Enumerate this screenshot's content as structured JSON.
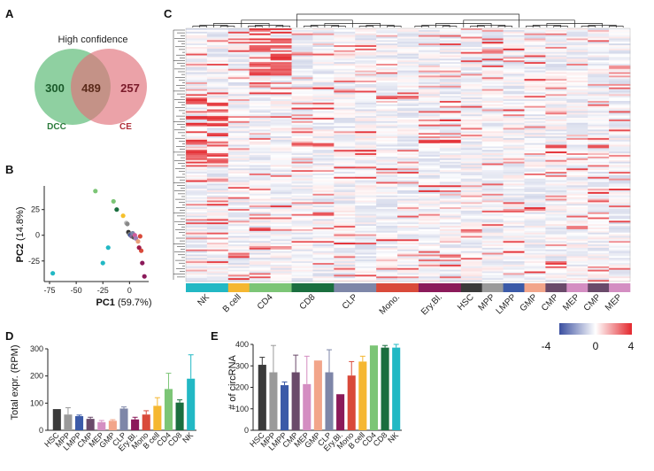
{
  "panels": {
    "A": "A",
    "B": "B",
    "C": "C",
    "D": "D",
    "E": "E"
  },
  "venn": {
    "title": "High confidence",
    "left": {
      "label": "DCC",
      "count": "300",
      "color": "#73c48a"
    },
    "center": {
      "count": "489"
    },
    "right": {
      "label": "CE",
      "count": "257",
      "color": "#e0707a"
    }
  },
  "chart_data": [
    {
      "type": "scatter",
      "panel": "B",
      "xlabel": "PC1",
      "xlabel_pct": "(59.7%)",
      "ylabel": "PC2",
      "ylabel_pct": "(14.8%)",
      "xlim": [
        -80,
        18
      ],
      "ylim": [
        -45,
        48
      ],
      "xticks": [
        -75,
        -50,
        -25,
        0
      ],
      "yticks": [
        -25,
        0,
        25
      ],
      "points": [
        {
          "x": -72,
          "y": -37,
          "color": "#22b8c4"
        },
        {
          "x": -32,
          "y": 43,
          "color": "#7cc576"
        },
        {
          "x": -25,
          "y": -27,
          "color": "#22b8c4"
        },
        {
          "x": -20,
          "y": -12,
          "color": "#22b8c4"
        },
        {
          "x": -15,
          "y": 33,
          "color": "#7cc576"
        },
        {
          "x": -12,
          "y": 25,
          "color": "#1a6e3e"
        },
        {
          "x": -6,
          "y": 19,
          "color": "#f5c02b"
        },
        {
          "x": -3,
          "y": 12,
          "color": "#bbbbbb"
        },
        {
          "x": -2,
          "y": 11,
          "color": "#888888"
        },
        {
          "x": -1,
          "y": 3,
          "color": "#333333"
        },
        {
          "x": 0,
          "y": 1,
          "color": "#777777"
        },
        {
          "x": 1,
          "y": 0,
          "color": "#3b5aa8"
        },
        {
          "x": 2,
          "y": -1,
          "color": "#8a6a9a"
        },
        {
          "x": 3,
          "y": 2,
          "color": "#7e86a8"
        },
        {
          "x": 4,
          "y": -2,
          "color": "#555555"
        },
        {
          "x": 5,
          "y": 0,
          "color": "#d05a9a"
        },
        {
          "x": 6,
          "y": -3,
          "color": "#a07ab8"
        },
        {
          "x": 8,
          "y": -6,
          "color": "#e8a07a"
        },
        {
          "x": 10,
          "y": -1,
          "color": "#d94a3a"
        },
        {
          "x": 11,
          "y": -15,
          "color": "#d94a3a"
        },
        {
          "x": 12,
          "y": -27,
          "color": "#8b1a5a"
        },
        {
          "x": 14,
          "y": -40,
          "color": "#8b1a5a"
        },
        {
          "x": 9,
          "y": -12,
          "color": "#a01a4a"
        }
      ]
    },
    {
      "type": "heatmap",
      "panel": "C",
      "colorscale": {
        "min": "-4",
        "mid": "0",
        "max": "4",
        "low": "#3a4fa0",
        "mid_color": "#ffffff",
        "high": "#e3272d"
      },
      "groups": [
        {
          "label": "NK",
          "color": "#22b8c4",
          "columns": 2
        },
        {
          "label": "B cell",
          "color": "#f5b731",
          "columns": 1
        },
        {
          "label": "CD4",
          "color": "#7cc576",
          "columns": 2
        },
        {
          "label": "CD8",
          "color": "#1a6e3e",
          "columns": 2
        },
        {
          "label": "CLP",
          "color": "#7e86a8",
          "columns": 2
        },
        {
          "label": "Mono.",
          "color": "#d94a3a",
          "columns": 2
        },
        {
          "label": "Ery.Bl.",
          "color": "#8b1a5a",
          "columns": 2
        },
        {
          "label": "HSC",
          "color": "#3a3a3a",
          "columns": 1
        },
        {
          "label": "MPP",
          "color": "#9a9a9a",
          "columns": 1
        },
        {
          "label": "LMPP",
          "color": "#3b5aa8",
          "columns": 1
        },
        {
          "label": "GMP",
          "color": "#f2a58a",
          "columns": 1
        },
        {
          "label": "CMP",
          "color": "#6a4a6a",
          "columns": 1
        },
        {
          "label": "MEP",
          "color": "#d48ec2",
          "columns": 1
        },
        {
          "label": "CMP",
          "color": "#6a4a6a",
          "columns": 1
        },
        {
          "label": "MEP",
          "color": "#d48ec2",
          "columns": 1
        }
      ]
    },
    {
      "type": "bar",
      "panel": "D",
      "ylabel": "Total expr. (RPM)",
      "ylim": [
        0,
        300
      ],
      "yticks": [
        0,
        100,
        200,
        300
      ],
      "categories": [
        "HSC",
        "MPP",
        "LMPP",
        "CMP",
        "MEP",
        "GMP",
        "CLP",
        "Ery.Bl.",
        "Mono",
        "B cell",
        "CD4",
        "CD8",
        "NK"
      ],
      "values": [
        78,
        58,
        52,
        42,
        30,
        35,
        80,
        40,
        58,
        90,
        152,
        102,
        190
      ],
      "errors": [
        0,
        25,
        4,
        6,
        6,
        4,
        6,
        8,
        14,
        30,
        58,
        10,
        88
      ],
      "colors": [
        "#3a3a3a",
        "#9a9a9a",
        "#3b5aa8",
        "#6a4a6a",
        "#d48ec2",
        "#f2a58a",
        "#7e86a8",
        "#8b1a5a",
        "#d94a3a",
        "#f5b731",
        "#7cc576",
        "#1a6e3e",
        "#22b8c4"
      ]
    },
    {
      "type": "bar",
      "panel": "E",
      "ylabel": "# of circRNA",
      "ylim": [
        0,
        400
      ],
      "yticks": [
        0,
        100,
        200,
        300,
        400
      ],
      "categories": [
        "HSC",
        "MPP",
        "LMPP",
        "CMP",
        "MEP",
        "GMP",
        "CLP",
        "Ery.Bl.",
        "Mono",
        "B cell",
        "CD4",
        "CD8",
        "NK"
      ],
      "values": [
        305,
        270,
        210,
        270,
        215,
        325,
        270,
        168,
        255,
        320,
        395,
        385,
        385
      ],
      "errors": [
        35,
        125,
        15,
        80,
        130,
        0,
        105,
        0,
        65,
        25,
        0,
        10,
        15
      ],
      "colors": [
        "#3a3a3a",
        "#9a9a9a",
        "#3b5aa8",
        "#6a4a6a",
        "#d48ec2",
        "#f2a58a",
        "#7e86a8",
        "#8b1a5a",
        "#d94a3a",
        "#f5b731",
        "#7cc576",
        "#1a6e3e",
        "#22b8c4"
      ]
    }
  ]
}
